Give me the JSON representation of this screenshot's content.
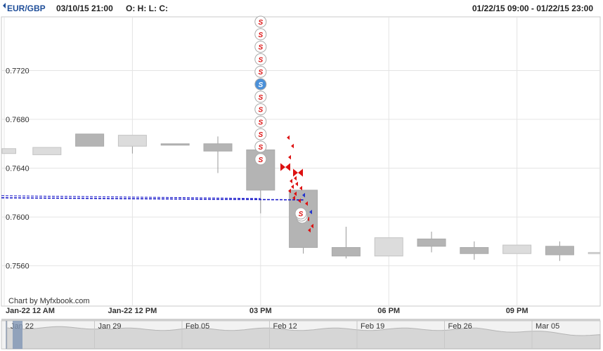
{
  "header": {
    "symbol": "EUR/GBP",
    "datetime": "03/10/15 21:00",
    "ohlc": "O: H: L: C:",
    "range": "01/22/15 09:00 - 01/22/15 23:00"
  },
  "credit": "Chart by Myfxbook.com",
  "colors": {
    "accent": "#1f4e99",
    "candle_bear": "#b4b4b4",
    "candle_bull": "#dcdcdc",
    "dashed_line": "#1010c8",
    "marker_red": "#dd1111",
    "marker_blue": "#2233cc",
    "highlight_blue": "#4a90d9"
  },
  "chart_data": {
    "type": "candlestick",
    "y_ticks": [
      "0.7720",
      "0.7680",
      "0.7640",
      "0.7600",
      "0.7560"
    ],
    "ylim": [
      0.7527,
      0.7764
    ],
    "x_ticks": [
      "Jan-22 12 AM",
      "Jan-22 12 PM",
      "03 PM",
      "06 PM",
      "09 PM"
    ],
    "hours": [
      "09:00",
      "10:00",
      "11:00",
      "12:00",
      "13:00",
      "14:00",
      "15:00",
      "16:00",
      "17:00",
      "18:00",
      "19:00",
      "20:00",
      "21:00",
      "22:00",
      "23:00"
    ],
    "candles": [
      {
        "o": 0.7652,
        "c": 0.7656,
        "h": 0.7656,
        "l": 0.7652
      },
      {
        "o": 0.7651,
        "c": 0.7657,
        "h": 0.7657,
        "l": 0.7651
      },
      {
        "o": 0.7668,
        "c": 0.7658,
        "h": 0.7668,
        "l": 0.7658
      },
      {
        "o": 0.7658,
        "c": 0.7667,
        "h": 0.7667,
        "l": 0.7652
      },
      {
        "o": 0.766,
        "c": 0.7659,
        "h": 0.766,
        "l": 0.7659
      },
      {
        "o": 0.766,
        "c": 0.7654,
        "h": 0.7666,
        "l": 0.7636
      },
      {
        "o": 0.7655,
        "c": 0.7622,
        "h": 0.7655,
        "l": 0.7603
      },
      {
        "o": 0.7622,
        "c": 0.7575,
        "h": 0.7622,
        "l": 0.757
      },
      {
        "o": 0.7575,
        "c": 0.7568,
        "h": 0.7592,
        "l": 0.7566
      },
      {
        "o": 0.7568,
        "c": 0.7583,
        "h": 0.7583,
        "l": 0.7568
      },
      {
        "o": 0.7582,
        "c": 0.7576,
        "h": 0.7588,
        "l": 0.7571
      },
      {
        "o": 0.7575,
        "c": 0.757,
        "h": 0.758,
        "l": 0.7565
      },
      {
        "o": 0.757,
        "c": 0.7577,
        "h": 0.7577,
        "l": 0.757
      },
      {
        "o": 0.7576,
        "c": 0.7569,
        "h": 0.758,
        "l": 0.7564
      },
      {
        "o": 0.7571,
        "c": 0.7571,
        "h": 0.7571,
        "l": 0.7571
      }
    ],
    "dashed_line_value": 0.7614,
    "sell_markers": {
      "label": "S",
      "count": 12,
      "highlighted_index": 5
    },
    "navigator_labels": [
      "Jan 22",
      "Jan 29",
      "Feb 05",
      "Feb 12",
      "Feb 19",
      "Feb 26",
      "Mar 05"
    ]
  }
}
